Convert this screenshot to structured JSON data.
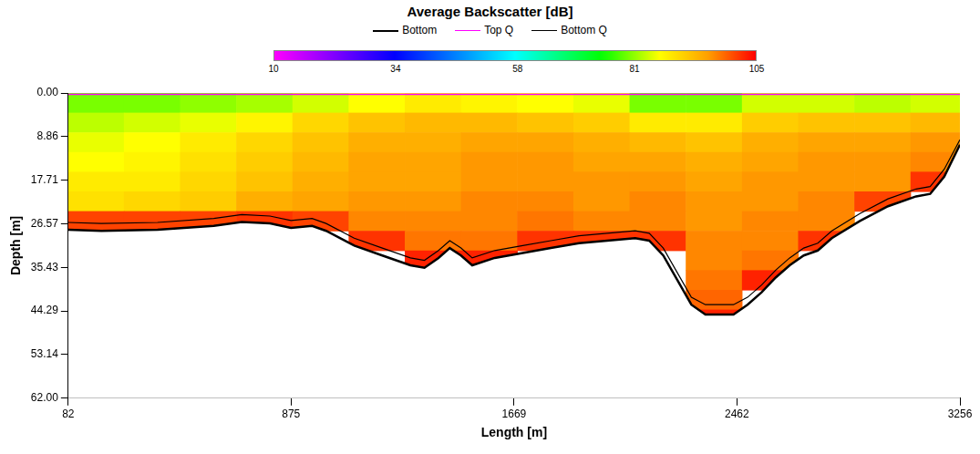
{
  "chart_data": {
    "type": "heatmap",
    "title": "Average Backscatter [dB]",
    "x_label": "Length [m]",
    "y_label": "Depth [m]",
    "xlim": [
      82,
      3256
    ],
    "xticks": [
      82,
      875,
      1669,
      2462,
      3256
    ],
    "ylim": [
      0,
      62
    ],
    "yticks": [
      {
        "value": 0,
        "label": "0.00"
      },
      8.86,
      17.71,
      26.57,
      35.43,
      44.29,
      53.14,
      {
        "value": 62,
        "label": "62.00"
      }
    ],
    "grid": false,
    "legend": "top",
    "colorbar_range": [
      10,
      105
    ],
    "colorbar_ticks": [
      10,
      34,
      58,
      81,
      105
    ],
    "length_bins": [
      82,
      280,
      480,
      680,
      880,
      1080,
      1280,
      1480,
      1680,
      1880,
      2080,
      2280,
      2480,
      2680,
      2880,
      3080,
      3256
    ],
    "depth_bins": [
      0,
      4,
      8,
      12,
      16,
      20,
      24,
      28,
      32,
      36,
      40,
      44,
      48
    ],
    "cells": [
      [
        80,
        80,
        81,
        82,
        84,
        86,
        88,
        87,
        86,
        85,
        80,
        80,
        84,
        84,
        83,
        84
      ],
      [
        83,
        84,
        85,
        87,
        90,
        92,
        93,
        93,
        92,
        91,
        88,
        88,
        91,
        92,
        92,
        93
      ],
      [
        85,
        86,
        88,
        90,
        92,
        94,
        94,
        95,
        95,
        94,
        93,
        92,
        94,
        95,
        95,
        96
      ],
      [
        86,
        87,
        89,
        91,
        93,
        95,
        95,
        96,
        96,
        95,
        95,
        94,
        95,
        96,
        96,
        97
      ],
      [
        88,
        88,
        90,
        92,
        94,
        95,
        95,
        96,
        96,
        96,
        96,
        95,
        96,
        96,
        96,
        102
      ],
      [
        89,
        90,
        91,
        94,
        95,
        96,
        96,
        97,
        97,
        96,
        97,
        96,
        96,
        97,
        101,
        null
      ],
      [
        101,
        101,
        101,
        102,
        101,
        97,
        97,
        97,
        98,
        97,
        97,
        96,
        97,
        97,
        null,
        null
      ],
      [
        null,
        null,
        null,
        null,
        null,
        102,
        98,
        98,
        102,
        102,
        102,
        97,
        97,
        102,
        null,
        null
      ],
      [
        null,
        null,
        null,
        null,
        null,
        null,
        103,
        103,
        null,
        null,
        null,
        97,
        98,
        null,
        null,
        null
      ],
      [
        null,
        null,
        null,
        null,
        null,
        null,
        null,
        null,
        null,
        null,
        null,
        98,
        103,
        null,
        null,
        null
      ],
      [
        null,
        null,
        null,
        null,
        null,
        null,
        null,
        null,
        null,
        null,
        null,
        99,
        null,
        null,
        null,
        null
      ],
      [
        null,
        null,
        null,
        null,
        null,
        null,
        null,
        null,
        null,
        null,
        null,
        103,
        null,
        null,
        null,
        null
      ]
    ],
    "series": [
      {
        "name": "Bottom",
        "color": "#000000",
        "x": [
          82,
          200,
          400,
          600,
          700,
          800,
          875,
          950,
          1000,
          1100,
          1200,
          1300,
          1350,
          1400,
          1440,
          1480,
          1520,
          1600,
          1700,
          1800,
          1900,
          2000,
          2100,
          2150,
          2200,
          2250,
          2300,
          2350,
          2450,
          2500,
          2550,
          2600,
          2650,
          2700,
          2750,
          2800,
          2900,
          3000,
          3100,
          3150,
          3200,
          3256
        ],
        "values": [
          27.8,
          28,
          27.8,
          27,
          26.2,
          26.5,
          27.4,
          27,
          28,
          31,
          33,
          35,
          35.5,
          33.5,
          31.5,
          33,
          35,
          33.5,
          32.5,
          31.5,
          30.5,
          30,
          29.5,
          30,
          33,
          38,
          43,
          45,
          45,
          43,
          40.5,
          37.5,
          35,
          33,
          32,
          29.5,
          26,
          23,
          21,
          20.5,
          17,
          10.5
        ]
      },
      {
        "name": "Top Q",
        "color": "#ff00ff",
        "x": [
          82,
          3256
        ],
        "values": [
          0.3,
          0.3
        ]
      },
      {
        "name": "Bottom Q",
        "color": "#000000",
        "x": [
          82,
          200,
          400,
          600,
          700,
          800,
          875,
          950,
          1000,
          1100,
          1200,
          1300,
          1350,
          1400,
          1440,
          1480,
          1520,
          1600,
          1700,
          1800,
          1900,
          2000,
          2100,
          2150,
          2200,
          2250,
          2300,
          2350,
          2450,
          2500,
          2550,
          2600,
          2650,
          2700,
          2750,
          2800,
          2900,
          3000,
          3100,
          3150,
          3200,
          3256
        ],
        "values": [
          26.3,
          26.5,
          26.3,
          25.5,
          24.7,
          25,
          25.9,
          25.5,
          26.5,
          29.5,
          31.5,
          33.5,
          34,
          32,
          30,
          31.5,
          33.5,
          32,
          31,
          30,
          29,
          28.5,
          28,
          28.5,
          31.5,
          36.5,
          41.5,
          43,
          43,
          41.5,
          39,
          36,
          33.5,
          31.5,
          30.5,
          28,
          24.5,
          21.5,
          19.5,
          19,
          15.5,
          9.5
        ]
      }
    ]
  }
}
